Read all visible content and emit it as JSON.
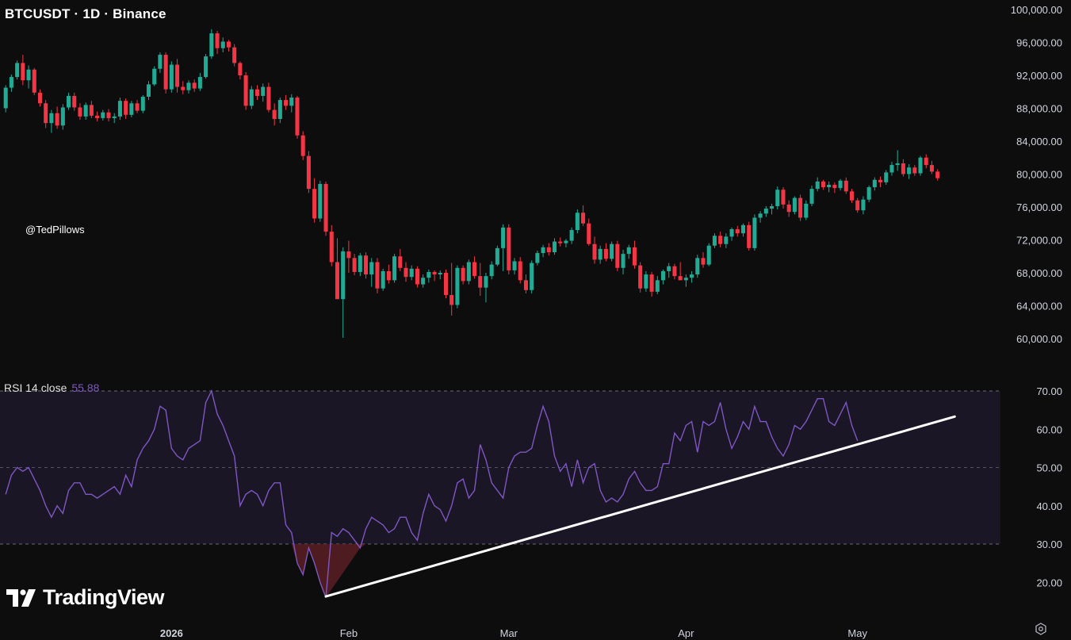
{
  "header": {
    "title": "BTCUSDT · 1D · Binance"
  },
  "watermark": "@TedPillows",
  "brand": {
    "logo_text": "TradingView"
  },
  "rsi": {
    "label": "RSI 14 close",
    "value": "55.88"
  },
  "colors": {
    "up": "#22ab94",
    "down": "#f23645",
    "rsi_line": "#7e57c2",
    "trendline": "#ffffff",
    "rsi_band": "#1a1626"
  },
  "icons": {
    "settings": "gear-icon",
    "logo": "tradingview-logo-icon"
  },
  "chart_data": [
    {
      "type": "candlestick",
      "title": "BTCUSDT · 1D · Binance",
      "ylim": [
        57500,
        101000
      ],
      "y_ticks": [
        "100,000.00",
        "96,000.00",
        "92,000.00",
        "88,000.00",
        "84,000.00",
        "80,000.00",
        "76,000.00",
        "72,000.00",
        "68,000.00",
        "64,000.00",
        "60,000.00"
      ],
      "x_ticks": [
        "2026",
        "Feb",
        "Mar",
        "Apr",
        "May"
      ],
      "x_tick_days": [
        0,
        31,
        59,
        90,
        120
      ],
      "day_range": [
        -30,
        145
      ],
      "start_day": -29,
      "candles": [
        [
          88000,
          90800,
          87500,
          90500
        ],
        [
          90500,
          92100,
          90000,
          91800
        ],
        [
          91800,
          93800,
          91500,
          93500
        ],
        [
          93500,
          94500,
          90800,
          91400
        ],
        [
          91400,
          93200,
          90400,
          92700
        ],
        [
          92700,
          92900,
          89600,
          89900
        ],
        [
          89900,
          90300,
          88200,
          88600
        ],
        [
          88600,
          89000,
          85600,
          86200
        ],
        [
          86200,
          87800,
          85000,
          87400
        ],
        [
          87400,
          88200,
          85500,
          85900
        ],
        [
          85900,
          88500,
          85400,
          88100
        ],
        [
          88100,
          89900,
          87800,
          89500
        ],
        [
          89500,
          89900,
          87700,
          88100
        ],
        [
          88100,
          88600,
          86600,
          87000
        ],
        [
          87000,
          88700,
          86600,
          88400
        ],
        [
          88400,
          88900,
          86800,
          87100
        ],
        [
          87100,
          87600,
          86400,
          86800
        ],
        [
          86800,
          87800,
          86500,
          87500
        ],
        [
          87500,
          87900,
          86400,
          86800
        ],
        [
          86800,
          87400,
          86200,
          87000
        ],
        [
          87000,
          89300,
          86600,
          88900
        ],
        [
          88900,
          89200,
          86700,
          87200
        ],
        [
          87200,
          88900,
          86900,
          88600
        ],
        [
          88600,
          89000,
          87400,
          87700
        ],
        [
          87700,
          89600,
          87400,
          89400
        ],
        [
          89400,
          91300,
          89000,
          90900
        ],
        [
          90900,
          93100,
          90700,
          92800
        ],
        [
          92800,
          94800,
          92300,
          94500
        ],
        [
          94500,
          94800,
          89800,
          90300
        ],
        [
          90300,
          93700,
          89900,
          93300
        ],
        [
          93300,
          94000,
          89900,
          90600
        ],
        [
          90600,
          91300,
          89700,
          90200
        ],
        [
          90200,
          91400,
          89800,
          91100
        ],
        [
          91100,
          91500,
          90000,
          90400
        ],
        [
          90400,
          92300,
          90100,
          91800
        ],
        [
          91800,
          94600,
          91600,
          94300
        ],
        [
          94300,
          97600,
          94000,
          97100
        ],
        [
          97100,
          97400,
          94600,
          95300
        ],
        [
          95300,
          96600,
          94800,
          96100
        ],
        [
          96100,
          96300,
          94900,
          95400
        ],
        [
          95400,
          95800,
          93100,
          93500
        ],
        [
          93500,
          93700,
          91500,
          92000
        ],
        [
          92000,
          92400,
          87800,
          88300
        ],
        [
          88300,
          90700,
          87900,
          90300
        ],
        [
          90300,
          90800,
          89000,
          89500
        ],
        [
          89500,
          91000,
          88800,
          90600
        ],
        [
          90600,
          91100,
          87500,
          87800
        ],
        [
          87800,
          88600,
          85900,
          86700
        ],
        [
          86700,
          89300,
          86200,
          89000
        ],
        [
          89000,
          89600,
          87800,
          88300
        ],
        [
          88300,
          89700,
          87500,
          89300
        ],
        [
          89300,
          89500,
          84300,
          84700
        ],
        [
          84700,
          85200,
          81700,
          82200
        ],
        [
          82200,
          82800,
          77700,
          78200
        ],
        [
          78200,
          79500,
          74100,
          74600
        ],
        [
          74600,
          79200,
          74200,
          78800
        ],
        [
          78800,
          79100,
          72500,
          73000
        ],
        [
          73000,
          73800,
          68800,
          69300
        ],
        [
          69300,
          72200,
          65000,
          64800
        ],
        [
          64800,
          71100,
          60100,
          70600
        ],
        [
          70600,
          71900,
          68000,
          69800
        ],
        [
          69800,
          70300,
          67700,
          68100
        ],
        [
          68100,
          70400,
          67600,
          70100
        ],
        [
          70100,
          70500,
          67300,
          67800
        ],
        [
          67800,
          69800,
          66300,
          69300
        ],
        [
          69300,
          69800,
          65500,
          66100
        ],
        [
          66100,
          68500,
          65800,
          68200
        ],
        [
          68200,
          69000,
          66700,
          67100
        ],
        [
          67100,
          70300,
          66800,
          70000
        ],
        [
          70000,
          70900,
          68200,
          68600
        ],
        [
          68600,
          69300,
          66900,
          67500
        ],
        [
          67500,
          68900,
          67100,
          68500
        ],
        [
          68500,
          68800,
          66200,
          66600
        ],
        [
          66600,
          67800,
          66200,
          67400
        ],
        [
          67400,
          68400,
          66800,
          68100
        ],
        [
          68100,
          68300,
          67000,
          67800
        ],
        [
          67800,
          68300,
          67200,
          68000
        ],
        [
          68000,
          68400,
          64900,
          65300
        ],
        [
          65300,
          69200,
          62800,
          64100
        ],
        [
          64100,
          68900,
          63700,
          68600
        ],
        [
          68600,
          68900,
          66600,
          67000
        ],
        [
          67000,
          69600,
          66600,
          69300
        ],
        [
          69300,
          70000,
          67300,
          67600
        ],
        [
          67600,
          69200,
          65200,
          66200
        ],
        [
          66200,
          68000,
          64400,
          67600
        ],
        [
          67600,
          69400,
          67200,
          69000
        ],
        [
          69000,
          71300,
          68800,
          71000
        ],
        [
          71000,
          73900,
          68200,
          73500
        ],
        [
          73500,
          73900,
          67800,
          68300
        ],
        [
          68300,
          69800,
          67800,
          69400
        ],
        [
          69400,
          69900,
          66700,
          67100
        ],
        [
          67100,
          67800,
          65500,
          65900
        ],
        [
          65900,
          69500,
          65500,
          69200
        ],
        [
          69200,
          70700,
          68900,
          70400
        ],
        [
          70400,
          71400,
          69900,
          71100
        ],
        [
          71100,
          71600,
          70100,
          70500
        ],
        [
          70500,
          72200,
          70200,
          71800
        ],
        [
          71800,
          72300,
          71200,
          71600
        ],
        [
          71600,
          72100,
          71100,
          71900
        ],
        [
          71900,
          73500,
          71500,
          73200
        ],
        [
          73200,
          75700,
          72800,
          75300
        ],
        [
          75300,
          76200,
          73700,
          74000
        ],
        [
          74000,
          74600,
          71300,
          71500
        ],
        [
          71500,
          72400,
          69100,
          69600
        ],
        [
          69600,
          71300,
          69100,
          70900
        ],
        [
          70900,
          71600,
          69400,
          69700
        ],
        [
          69700,
          71800,
          69400,
          71500
        ],
        [
          71500,
          71900,
          68200,
          68600
        ],
        [
          68600,
          70800,
          67800,
          70300
        ],
        [
          70300,
          71400,
          69700,
          71100
        ],
        [
          71100,
          71900,
          68500,
          68900
        ],
        [
          68900,
          69300,
          65600,
          66100
        ],
        [
          66100,
          68200,
          65700,
          67800
        ],
        [
          67800,
          68100,
          65100,
          65700
        ],
        [
          65700,
          67600,
          65400,
          67100
        ],
        [
          67100,
          68400,
          66600,
          68200
        ],
        [
          68200,
          69200,
          67400,
          68800
        ],
        [
          68800,
          69100,
          67200,
          67600
        ],
        [
          67600,
          69300,
          67100,
          67100
        ],
        [
          67100,
          67800,
          66300,
          67400
        ],
        [
          67400,
          68200,
          66800,
          67800
        ],
        [
          67800,
          70200,
          67400,
          69800
        ],
        [
          69800,
          70500,
          68600,
          69000
        ],
        [
          69000,
          71600,
          68800,
          71300
        ],
        [
          71300,
          72800,
          71000,
          72500
        ],
        [
          72500,
          73000,
          71100,
          71500
        ],
        [
          71500,
          72800,
          71000,
          72400
        ],
        [
          72400,
          73500,
          71900,
          73300
        ],
        [
          73300,
          73700,
          72400,
          72800
        ],
        [
          72800,
          74000,
          72400,
          73800
        ],
        [
          73800,
          74200,
          70700,
          71000
        ],
        [
          71000,
          75100,
          70700,
          74700
        ],
        [
          74700,
          75500,
          74100,
          75200
        ],
        [
          75200,
          76100,
          74800,
          75800
        ],
        [
          75800,
          76400,
          75100,
          76100
        ],
        [
          76100,
          78500,
          75700,
          78100
        ],
        [
          78100,
          78400,
          75800,
          76300
        ],
        [
          76300,
          76800,
          74800,
          75400
        ],
        [
          75400,
          77300,
          75100,
          77100
        ],
        [
          77100,
          77500,
          74300,
          74700
        ],
        [
          74700,
          76800,
          74400,
          76400
        ],
        [
          76400,
          78600,
          76100,
          78200
        ],
        [
          78200,
          79600,
          77900,
          79100
        ],
        [
          79100,
          79300,
          78100,
          78400
        ],
        [
          78400,
          79100,
          77800,
          78700
        ],
        [
          78700,
          79000,
          77700,
          78300
        ],
        [
          78300,
          79400,
          78000,
          79200
        ],
        [
          79200,
          79600,
          77600,
          77900
        ],
        [
          77900,
          78200,
          76500,
          76800
        ],
        [
          76800,
          77100,
          75300,
          75600
        ],
        [
          75600,
          77300,
          75100,
          76900
        ],
        [
          76900,
          78600,
          76600,
          78400
        ],
        [
          78400,
          79600,
          78000,
          79300
        ],
        [
          79300,
          79700,
          78400,
          79000
        ],
        [
          79000,
          80500,
          78700,
          80200
        ],
        [
          80200,
          81500,
          79800,
          81100
        ],
        [
          81100,
          82900,
          80400,
          81300
        ],
        [
          81300,
          81800,
          79700,
          80000
        ],
        [
          80000,
          81200,
          79400,
          80800
        ],
        [
          80800,
          81100,
          79800,
          80100
        ],
        [
          80100,
          82200,
          79800,
          82000
        ],
        [
          82000,
          82400,
          80700,
          81100
        ],
        [
          81100,
          81600,
          80000,
          80300
        ],
        [
          80300,
          80600,
          79200,
          79500
        ]
      ]
    },
    {
      "type": "line",
      "title": "RSI 14 close",
      "ylim": [
        13,
        71
      ],
      "y_ticks": [
        "70.00",
        "60.00",
        "50.00",
        "40.00",
        "30.00",
        "20.00"
      ],
      "levels": [
        70,
        50,
        30
      ],
      "series": [
        {
          "name": "RSI 14 close",
          "start_day": -29,
          "values": [
            43,
            48,
            50,
            49,
            50,
            47,
            44,
            40,
            37,
            40,
            38,
            44,
            46,
            46,
            43,
            43,
            42,
            43,
            44,
            45,
            43,
            48,
            45,
            52,
            55,
            57,
            60,
            66,
            65,
            55,
            53,
            52,
            55,
            56,
            57,
            67,
            70,
            64,
            61,
            57,
            53,
            40,
            43,
            44,
            43,
            40,
            44,
            46,
            46,
            35,
            33,
            25,
            22,
            29,
            25,
            20,
            16,
            33,
            32,
            34,
            33,
            31,
            29,
            34,
            37,
            36,
            35,
            33,
            34,
            37,
            37,
            33,
            31,
            38,
            43,
            40,
            39,
            36,
            40,
            46,
            47,
            42,
            44,
            56,
            52,
            46,
            44,
            42,
            50,
            53,
            54,
            54,
            55,
            61,
            66,
            62,
            53,
            49,
            51,
            45,
            52,
            46,
            50,
            51,
            44,
            41,
            42,
            41,
            43,
            47,
            49,
            46,
            44,
            44,
            45,
            51,
            51,
            59,
            57,
            61,
            62,
            54,
            62,
            61,
            62,
            67,
            60,
            55,
            58,
            62,
            60,
            66,
            62,
            62,
            58,
            55,
            53,
            56,
            61,
            60,
            62,
            65,
            68,
            68,
            62,
            61,
            64,
            67,
            61,
            57
          ]
        }
      ],
      "trendline": {
        "start": [
          27,
          16.3
        ],
        "end": [
          137,
          63.3
        ]
      }
    }
  ]
}
